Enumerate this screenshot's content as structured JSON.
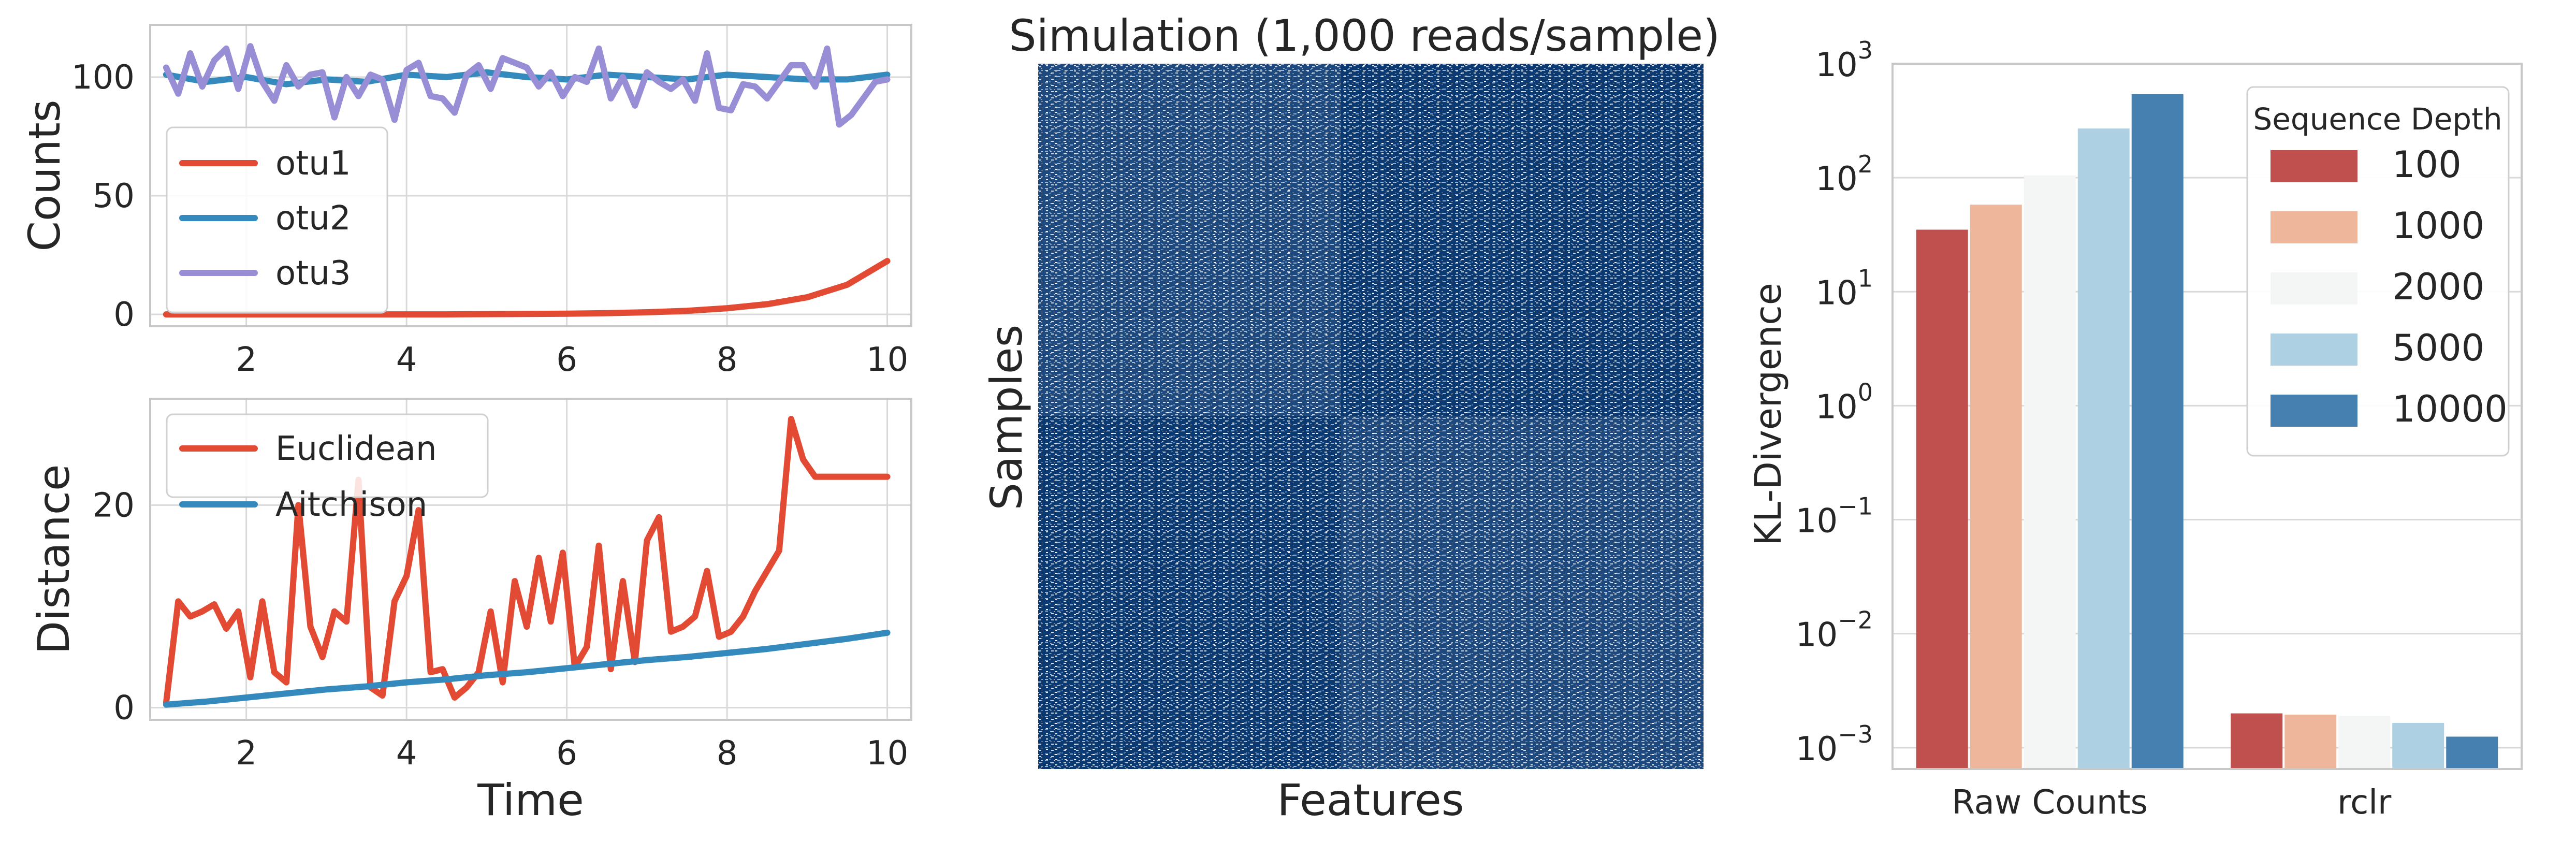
{
  "chart_data": [
    {
      "type": "line",
      "panel": "top-left",
      "ylabel": "Counts",
      "xlim": [
        0.8,
        10.3
      ],
      "ylim": [
        -5,
        122
      ],
      "xticks": [
        2,
        4,
        6,
        8,
        10
      ],
      "yticks": [
        0,
        50,
        100
      ],
      "legend_position": "left",
      "grid": true,
      "series": [
        {
          "name": "otu1",
          "color": "#e24a33",
          "x": [
            1,
            1.5,
            2,
            2.5,
            3,
            3.5,
            4,
            4.5,
            5,
            5.5,
            6,
            6.5,
            7,
            7.5,
            8,
            8.5,
            9,
            9.5,
            10
          ],
          "y": [
            0,
            0,
            0,
            0,
            0,
            0,
            0,
            0,
            0.1,
            0.2,
            0.3,
            0.5,
            0.9,
            1.5,
            2.6,
            4.3,
            7.2,
            12.5,
            22.5
          ]
        },
        {
          "name": "otu2",
          "color": "#348abd",
          "x": [
            1,
            1.5,
            2,
            2.5,
            3,
            3.5,
            4,
            4.5,
            5,
            5.5,
            6,
            6.5,
            7,
            7.5,
            8,
            8.5,
            9,
            9.5,
            10
          ],
          "y": [
            101,
            98,
            100,
            97,
            99,
            98,
            101,
            100,
            102,
            100,
            99,
            101,
            100,
            99,
            101,
            100,
            99,
            99,
            101
          ]
        },
        {
          "name": "otu3",
          "color": "#988ed5",
          "x": [
            1,
            1.15,
            1.3,
            1.45,
            1.6,
            1.75,
            1.9,
            2.05,
            2.2,
            2.35,
            2.5,
            2.65,
            2.8,
            2.95,
            3.1,
            3.25,
            3.4,
            3.55,
            3.7,
            3.85,
            4.0,
            4.15,
            4.3,
            4.45,
            4.6,
            4.75,
            4.9,
            5.05,
            5.2,
            5.35,
            5.5,
            5.65,
            5.8,
            5.95,
            6.1,
            6.25,
            6.4,
            6.55,
            6.7,
            6.85,
            7.0,
            7.15,
            7.3,
            7.45,
            7.6,
            7.75,
            7.9,
            8.05,
            8.2,
            8.35,
            8.5,
            8.65,
            8.8,
            8.95,
            9.1,
            9.25,
            9.4,
            9.55,
            9.7,
            9.85,
            10.0
          ],
          "y": [
            104,
            93,
            110,
            96,
            107,
            112,
            95,
            113,
            98,
            90,
            105,
            96,
            101,
            102,
            83,
            100,
            92,
            101,
            99,
            82,
            103,
            106,
            92,
            91,
            85,
            101,
            105,
            95,
            108,
            106,
            104,
            96,
            102,
            92,
            100,
            98,
            112,
            91,
            100,
            88,
            102,
            98,
            95,
            99,
            90,
            110,
            87,
            86,
            97,
            96,
            91,
            98,
            105,
            105,
            96,
            112,
            80,
            84,
            91,
            98,
            99
          ]
        }
      ]
    },
    {
      "type": "line",
      "panel": "bottom-left",
      "xlabel": "Time",
      "ylabel": "Distance",
      "xlim": [
        0.8,
        10.3
      ],
      "ylim": [
        -1.2,
        30.5
      ],
      "xticks": [
        2,
        4,
        6,
        8,
        10
      ],
      "yticks": [
        0,
        20
      ],
      "legend_position": "top-left",
      "grid": true,
      "series": [
        {
          "name": "Euclidean",
          "color": "#e24a33",
          "x": [
            1,
            1.15,
            1.3,
            1.45,
            1.6,
            1.75,
            1.9,
            2.05,
            2.2,
            2.35,
            2.5,
            2.65,
            2.8,
            2.95,
            3.1,
            3.25,
            3.4,
            3.55,
            3.7,
            3.85,
            4.0,
            4.15,
            4.3,
            4.45,
            4.6,
            4.75,
            4.9,
            5.05,
            5.2,
            5.35,
            5.5,
            5.65,
            5.8,
            5.95,
            6.1,
            6.25,
            6.4,
            6.55,
            6.7,
            6.85,
            7.0,
            7.15,
            7.3,
            7.45,
            7.6,
            7.75,
            7.9,
            8.05,
            8.2,
            8.35,
            8.5,
            8.65,
            8.8,
            8.95,
            9.1,
            9.25,
            9.4,
            9.55,
            9.7,
            9.85,
            10.0
          ],
          "y": [
            0.5,
            10.5,
            9,
            9.5,
            10.2,
            7.8,
            9.5,
            3,
            10.5,
            3.5,
            2.5,
            20,
            8,
            5,
            9.5,
            8.5,
            22.5,
            2,
            1.2,
            10.5,
            13,
            19.5,
            3.5,
            3.8,
            1,
            2,
            3.5,
            9.5,
            2.5,
            12.5,
            8,
            14.8,
            8.5,
            15.3,
            4,
            6,
            16,
            3.8,
            12.5,
            4.5,
            16.5,
            18.8,
            7.5,
            8,
            9,
            13.5,
            7,
            7.5,
            9,
            11.5,
            13.5,
            15.5,
            28.5,
            24.5,
            22.8,
            22.8,
            22.8,
            22.8,
            22.8,
            22.8,
            22.8
          ]
        },
        {
          "name": "Aitchison",
          "color": "#348abd",
          "x": [
            1,
            1.5,
            2,
            2.5,
            3,
            3.5,
            4,
            4.5,
            5,
            5.5,
            6,
            6.5,
            7,
            7.5,
            8,
            8.5,
            9,
            9.5,
            10
          ],
          "y": [
            0.3,
            0.6,
            1.0,
            1.4,
            1.8,
            2.1,
            2.5,
            2.8,
            3.2,
            3.5,
            3.9,
            4.3,
            4.7,
            5.0,
            5.4,
            5.8,
            6.3,
            6.8,
            7.4
          ]
        }
      ]
    },
    {
      "type": "heatmap",
      "panel": "center",
      "title": "Simulation (1,000 reads/sample)",
      "xlabel": "Features",
      "ylabel": "Samples"
    },
    {
      "type": "bar",
      "panel": "right",
      "ylabel": "KL-Divergence",
      "yscale": "log",
      "ylim": [
        0.00065,
        1000
      ],
      "yticks": [
        {
          "base": "10",
          "exp": "−3"
        },
        {
          "base": "10",
          "exp": "−2"
        },
        {
          "base": "10",
          "exp": "−1"
        },
        {
          "base": "10",
          "exp": "0"
        },
        {
          "base": "10",
          "exp": "1"
        },
        {
          "base": "10",
          "exp": "2"
        },
        {
          "base": "10",
          "exp": "3"
        }
      ],
      "categories": [
        "Raw Counts",
        "rclr"
      ],
      "legend_title": "Sequence Depth",
      "legend_position": "top-right",
      "grid": true,
      "series": [
        {
          "name": "100",
          "color": "#c0504d",
          "values": [
            35,
            0.002
          ]
        },
        {
          "name": "1000",
          "color": "#eeb69b",
          "values": [
            58,
            0.00195
          ]
        },
        {
          "name": "2000",
          "color": "#f4f6f6",
          "values": [
            105,
            0.0019
          ]
        },
        {
          "name": "5000",
          "color": "#aed0e3",
          "values": [
            270,
            0.00165
          ]
        },
        {
          "name": "10000",
          "color": "#4580b0",
          "values": [
            540,
            0.00125
          ]
        }
      ]
    }
  ]
}
